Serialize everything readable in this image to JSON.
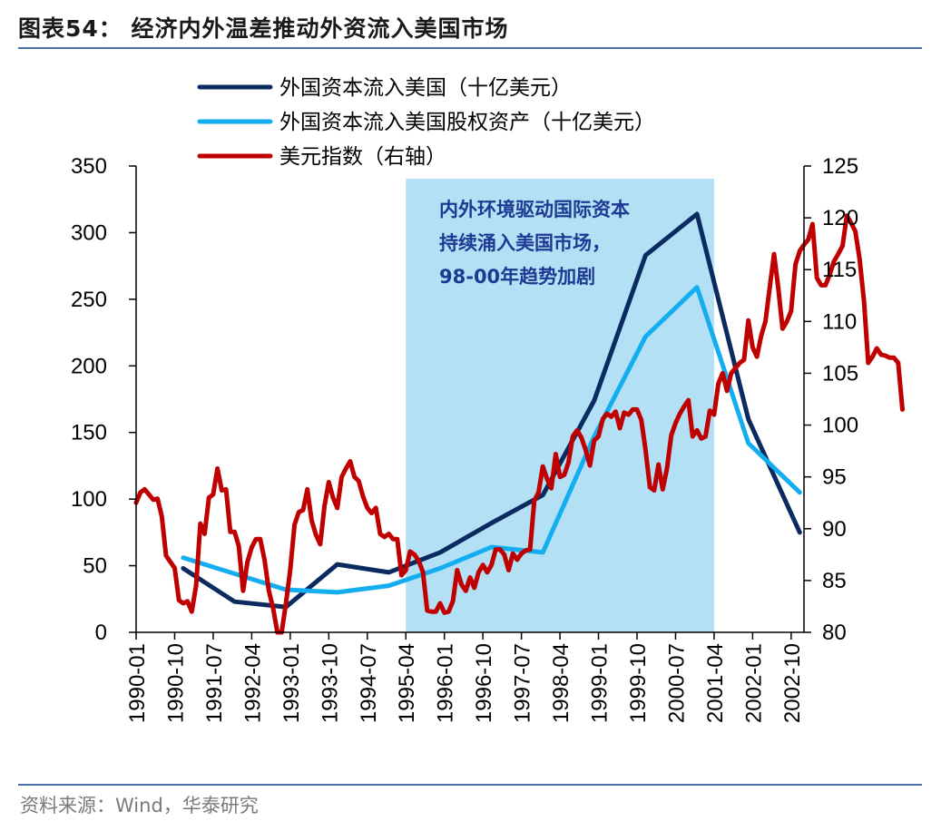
{
  "header": {
    "title": "图表54：   经济内外温差推动外资流入美国市场"
  },
  "footer": {
    "source": "资料来源：Wind，华泰研究"
  },
  "colors": {
    "navy": "#0b2a60",
    "lightblue": "#14aef0",
    "red": "#c00000",
    "shade": "#b3e0f5",
    "rule": "#4a6fa5"
  },
  "chart_data": {
    "type": "line",
    "title": "经济内外温差推动外资流入美国市场",
    "x_ticks": [
      "1990-01",
      "1990-10",
      "1991-07",
      "1992-04",
      "1993-01",
      "1993-10",
      "1994-07",
      "1995-04",
      "1996-01",
      "1996-10",
      "1997-07",
      "1998-04",
      "1999-01",
      "1999-10",
      "2000-07",
      "2001-04",
      "2002-01",
      "2002-10"
    ],
    "x_range": [
      "1990-01",
      "2003-01"
    ],
    "ylim_left": [
      0,
      350
    ],
    "yticks_left": [
      0,
      50,
      100,
      150,
      200,
      250,
      300,
      350
    ],
    "ylim_right": [
      80,
      125
    ],
    "yticks_right": [
      80,
      85,
      90,
      95,
      100,
      105,
      110,
      115,
      120,
      125
    ],
    "shaded_region": {
      "start": "1995-04",
      "end": "2001-04"
    },
    "annotation": [
      "内外环境驱动国际资本",
      "持续涌入美国市场，",
      "98-00年趋势加剧"
    ],
    "series": [
      {
        "name": "外国资本流入美国（十亿美元）",
        "axis": "left",
        "color": "#0b2a60",
        "points": [
          [
            "1990-12",
            48
          ],
          [
            "1991-12",
            23
          ],
          [
            "1992-12",
            19
          ],
          [
            "1993-12",
            51
          ],
          [
            "1994-12",
            45
          ],
          [
            "1995-12",
            60
          ],
          [
            "1996-12",
            82
          ],
          [
            "1997-12",
            103
          ],
          [
            "1998-12",
            174
          ],
          [
            "1999-12",
            283
          ],
          [
            "2000-12",
            314
          ],
          [
            "2001-12",
            160
          ],
          [
            "2002-12",
            75
          ]
        ]
      },
      {
        "name": "外国资本流入美国股权资产（十亿美元）",
        "axis": "left",
        "color": "#14aef0",
        "points": [
          [
            "1990-12",
            56
          ],
          [
            "1991-12",
            44
          ],
          [
            "1992-12",
            32
          ],
          [
            "1993-12",
            30
          ],
          [
            "1994-12",
            35
          ],
          [
            "1995-12",
            48
          ],
          [
            "1996-12",
            64
          ],
          [
            "1997-12",
            60
          ],
          [
            "1998-12",
            147
          ],
          [
            "1999-12",
            222
          ],
          [
            "2000-12",
            259
          ],
          [
            "2001-12",
            142
          ],
          [
            "2002-12",
            105
          ]
        ]
      },
      {
        "name": "美元指数（右轴）",
        "axis": "right",
        "color": "#c00000",
        "values": [
          92.5,
          93.5,
          93.8,
          93.3,
          92.8,
          92.9,
          91.2,
          87.4,
          86.8,
          86.2,
          83.1,
          82.8,
          83.0,
          82.0,
          84.5,
          90.5,
          89.5,
          93.0,
          93.3,
          95.8,
          93.7,
          93.8,
          89.7,
          89.7,
          88.3,
          84.0,
          86.8,
          88.2,
          89.0,
          89.0,
          87.0,
          84.0,
          82.3,
          80.0,
          80.0,
          82.8,
          86.0,
          90.4,
          91.6,
          91.8,
          93.8,
          90.8,
          89.4,
          88.5,
          92.2,
          94.5,
          93.0,
          92.0,
          95.0,
          95.8,
          96.5,
          95.0,
          94.6,
          93.1,
          92.0,
          91.5,
          92.0,
          89.5,
          89.2,
          89.5,
          89.0,
          89.0,
          85.5,
          86.0,
          87.8,
          87.5,
          86.9,
          85.8,
          82.1,
          82.0,
          82.0,
          82.8,
          81.9,
          82.0,
          83.0,
          86.0,
          84.6,
          84.0,
          85.3,
          84.3,
          85.8,
          86.5,
          85.8,
          86.5,
          88.0,
          88.0,
          87.5,
          86.0,
          87.6,
          87.0,
          87.6,
          87.9,
          88.0,
          92.7,
          93.5,
          96.0,
          94.8,
          93.9,
          97.2,
          95.0,
          95.2,
          96.4,
          98.9,
          99.5,
          98.8,
          97.6,
          96.1,
          98.5,
          98.9,
          100.6,
          101.1,
          100.8,
          101.3,
          99.7,
          101.2,
          101.0,
          101.5,
          101.5,
          100.5,
          97.6,
          94.0,
          93.7,
          96.2,
          93.8,
          95.8,
          99.0,
          100.2,
          101.1,
          101.8,
          102.4,
          98.9,
          99.5,
          98.7,
          98.9,
          101.4,
          101.0,
          104.0,
          105.0,
          103.3,
          105.0,
          105.5,
          106.0,
          106.3,
          110.1,
          107.5,
          106.6,
          108.6,
          110.0,
          113.3,
          116.5,
          113.2,
          109.3,
          110.0,
          111.0,
          115.5,
          116.8,
          117.4,
          117.9,
          119.4,
          114.2,
          113.5,
          113.5,
          114.5,
          115.8,
          116.5,
          117.3,
          120.2,
          119.5,
          118.7,
          116.0,
          112.0,
          106.0,
          106.6,
          107.4,
          106.8,
          106.7,
          106.5,
          106.5,
          106.0,
          101.5
        ]
      }
    ]
  },
  "legend": [
    {
      "label": "外国资本流入美国（十亿美元）",
      "color": "#0b2a60"
    },
    {
      "label": "外国资本流入美国股权资产（十亿美元）",
      "color": "#14aef0"
    },
    {
      "label": "美元指数（右轴）",
      "color": "#c00000"
    }
  ]
}
